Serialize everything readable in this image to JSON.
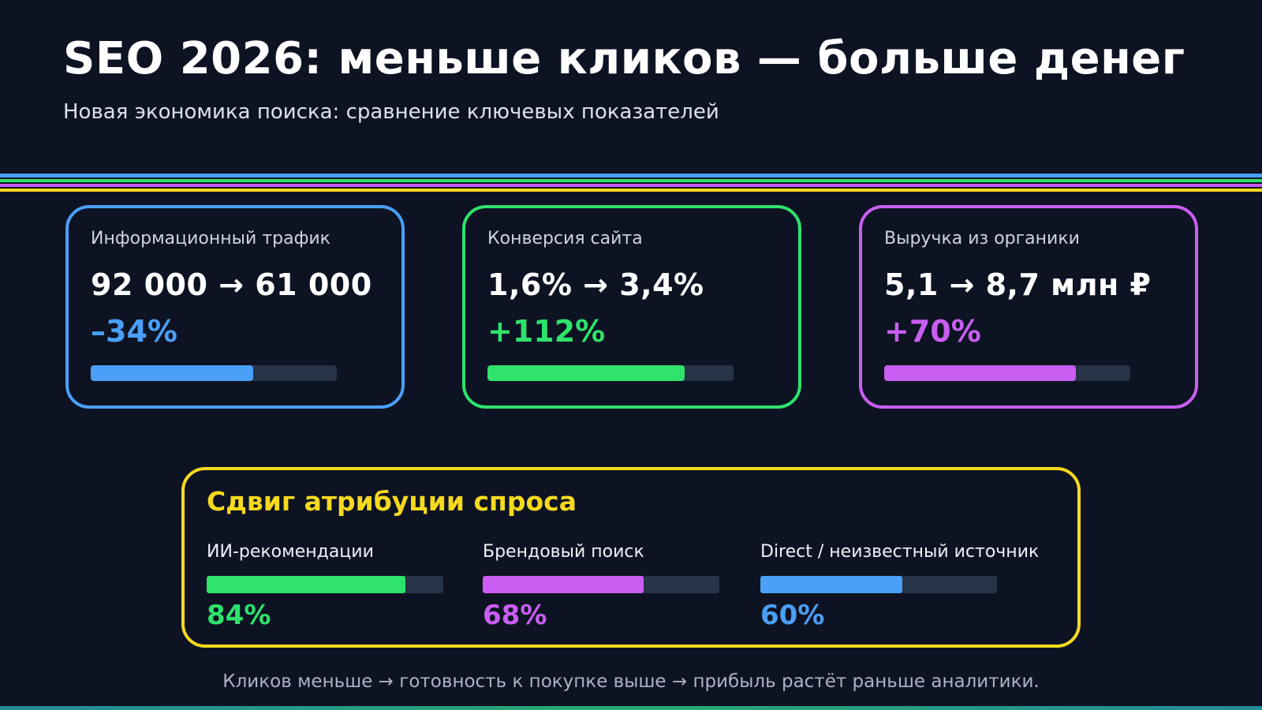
{
  "page": {
    "title": "SEO 2026: меньше кликов — больше денег",
    "subtitle": "Новая экономика поиска: сравнение ключевых показателей",
    "footer": "Кликов меньше → готовность к покупке выше → прибыль растёт раньше аналитики."
  },
  "colors": {
    "background": "#0d1322",
    "blue": "#4a9ff7",
    "green": "#2ee26c",
    "purple": "#c95ef2",
    "yellow": "#f6d91e",
    "bar_track": "#263349",
    "label_text": "#ccd5e4",
    "footer_text": "#a9b3c7"
  },
  "divider_band_colors": [
    "#4a9ff7",
    "#2ee26c",
    "#c95ef2",
    "#f6d91e"
  ],
  "metric_cards": [
    {
      "label": "Информационный трафик",
      "value": "92 000 → 61 000",
      "delta": "–34%",
      "accent": "#4a9ff7",
      "bar_percent": 66
    },
    {
      "label": "Конверсия сайта",
      "value": "1,6% → 3,4%",
      "delta": "+112%",
      "accent": "#2ee26c",
      "bar_percent": 80
    },
    {
      "label": "Выручка из органики",
      "value": "5,1 → 8,7 млн ₽",
      "delta": "+70%",
      "accent": "#c95ef2",
      "bar_percent": 78
    }
  ],
  "attribution": {
    "title": "Сдвиг атрибуции спроса",
    "items": [
      {
        "label": "ИИ-рекомендации",
        "percent": 84,
        "percent_label": "84%",
        "accent": "#2ee26c"
      },
      {
        "label": "Брендовый поиск",
        "percent": 68,
        "percent_label": "68%",
        "accent": "#c95ef2"
      },
      {
        "label": "Direct / неизвестный источник",
        "percent": 60,
        "percent_label": "60%",
        "accent": "#4a9ff7"
      }
    ]
  },
  "chart_data": {
    "type": "bar",
    "title": "SEO 2026: меньше кликов — больше денег",
    "subtitle": "Новая экономика поиска: сравнение ключевых показателей",
    "kpi_comparison": [
      {
        "metric": "Информационный трафик",
        "before": 92000,
        "after": 61000,
        "change_pct": -34
      },
      {
        "metric": "Конверсия сайта",
        "before": 1.6,
        "after": 3.4,
        "unit": "%",
        "change_pct": 112
      },
      {
        "metric": "Выручка из органики",
        "before": 5.1,
        "after": 8.7,
        "unit": "млн ₽",
        "change_pct": 70
      }
    ],
    "attribution_shift": {
      "title": "Сдвиг атрибуции спроса",
      "categories": [
        "ИИ-рекомендации",
        "Брендовый поиск",
        "Direct / неизвестный источник"
      ],
      "values": [
        84,
        68,
        60
      ],
      "value_range": [
        0,
        100
      ],
      "grid": false,
      "legend": false
    },
    "annotation": "Кликов меньше → готовность к покупке выше → прибыль растёт раньше аналитики."
  }
}
